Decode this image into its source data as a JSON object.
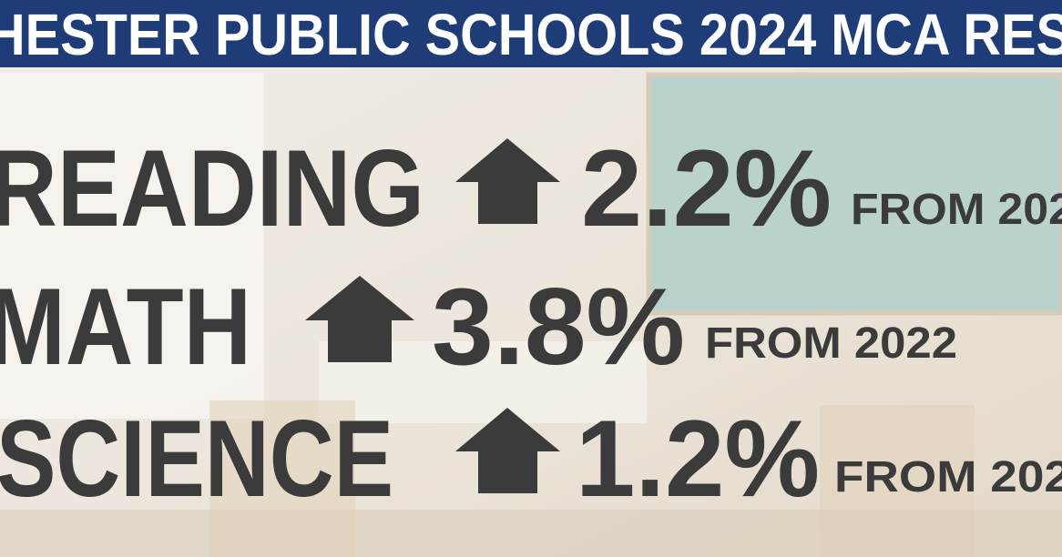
{
  "banner": {
    "title": "HESTER PUBLIC SCHOOLS 2024 MCA RES"
  },
  "rows": [
    {
      "subject": "READING",
      "change": "2.2%",
      "note": "FROM 202"
    },
    {
      "subject": "MATH",
      "change": "3.8%",
      "note": "FROM 2022"
    },
    {
      "subject": "SCIENCE",
      "change": "1.2%",
      "note": "FROM 202"
    }
  ]
}
